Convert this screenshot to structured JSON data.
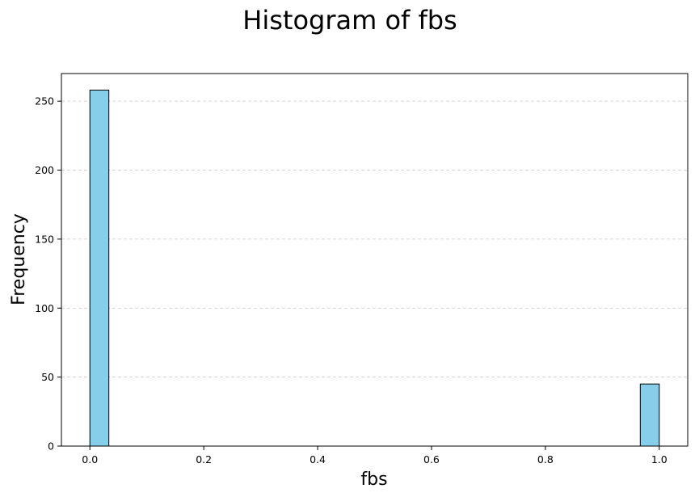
{
  "chart_data": {
    "type": "bar",
    "title": "Histogram of fbs",
    "xlabel": "fbs",
    "ylabel": "Frequency",
    "xlim": [
      -0.05,
      1.05
    ],
    "ylim": [
      0,
      270
    ],
    "bar_color": "#87CEEB",
    "edge_color": "#000000",
    "grid": "y-axis dashed",
    "bins": [
      {
        "x0": 0.0,
        "x1": 0.0333,
        "value": 258
      },
      {
        "x0": 0.9667,
        "x1": 1.0,
        "value": 45
      }
    ],
    "xticks": [
      "0.0",
      "0.2",
      "0.4",
      "0.6",
      "0.8",
      "1.0"
    ],
    "yticks": [
      "0",
      "50",
      "100",
      "150",
      "200",
      "250"
    ]
  }
}
